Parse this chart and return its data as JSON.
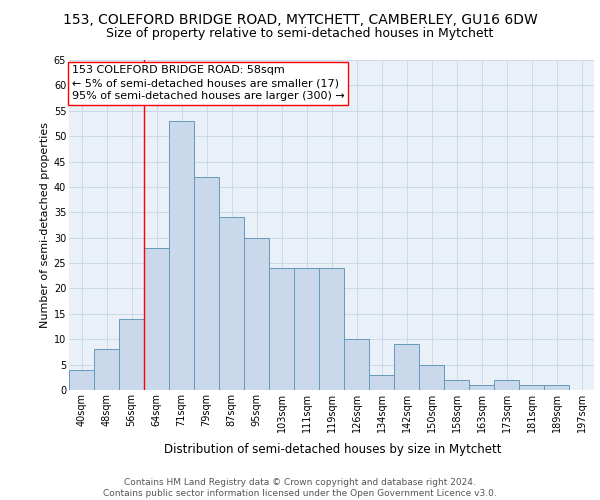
{
  "title": "153, COLEFORD BRIDGE ROAD, MYTCHETT, CAMBERLEY, GU16 6DW",
  "subtitle": "Size of property relative to semi-detached houses in Mytchett",
  "xlabel": "Distribution of semi-detached houses by size in Mytchett",
  "ylabel": "Number of semi-detached properties",
  "categories": [
    "40sqm",
    "48sqm",
    "56sqm",
    "64sqm",
    "71sqm",
    "79sqm",
    "87sqm",
    "95sqm",
    "103sqm",
    "111sqm",
    "119sqm",
    "126sqm",
    "134sqm",
    "142sqm",
    "150sqm",
    "158sqm",
    "163sqm",
    "173sqm",
    "181sqm",
    "189sqm",
    "197sqm"
  ],
  "values": [
    4,
    8,
    14,
    28,
    53,
    42,
    34,
    30,
    24,
    24,
    24,
    10,
    3,
    9,
    5,
    2,
    1,
    2,
    1,
    1,
    0
  ],
  "bar_color": "#c9d9eb",
  "bar_edge_color": "#6699bb",
  "grid_color": "#c5d5e5",
  "background_color": "#eaf0f8",
  "annotation_box_text": "153 COLEFORD BRIDGE ROAD: 58sqm\n← 5% of semi-detached houses are smaller (17)\n95% of semi-detached houses are larger (300) →",
  "red_line_x": 2.5,
  "ylim": [
    0,
    65
  ],
  "yticks": [
    0,
    5,
    10,
    15,
    20,
    25,
    30,
    35,
    40,
    45,
    50,
    55,
    60,
    65
  ],
  "footer_line1": "Contains HM Land Registry data © Crown copyright and database right 2024.",
  "footer_line2": "Contains public sector information licensed under the Open Government Licence v3.0.",
  "title_fontsize": 10,
  "subtitle_fontsize": 9,
  "annotation_fontsize": 8,
  "axis_label_fontsize": 8.5,
  "tick_fontsize": 7,
  "ylabel_fontsize": 8,
  "footer_fontsize": 6.5
}
